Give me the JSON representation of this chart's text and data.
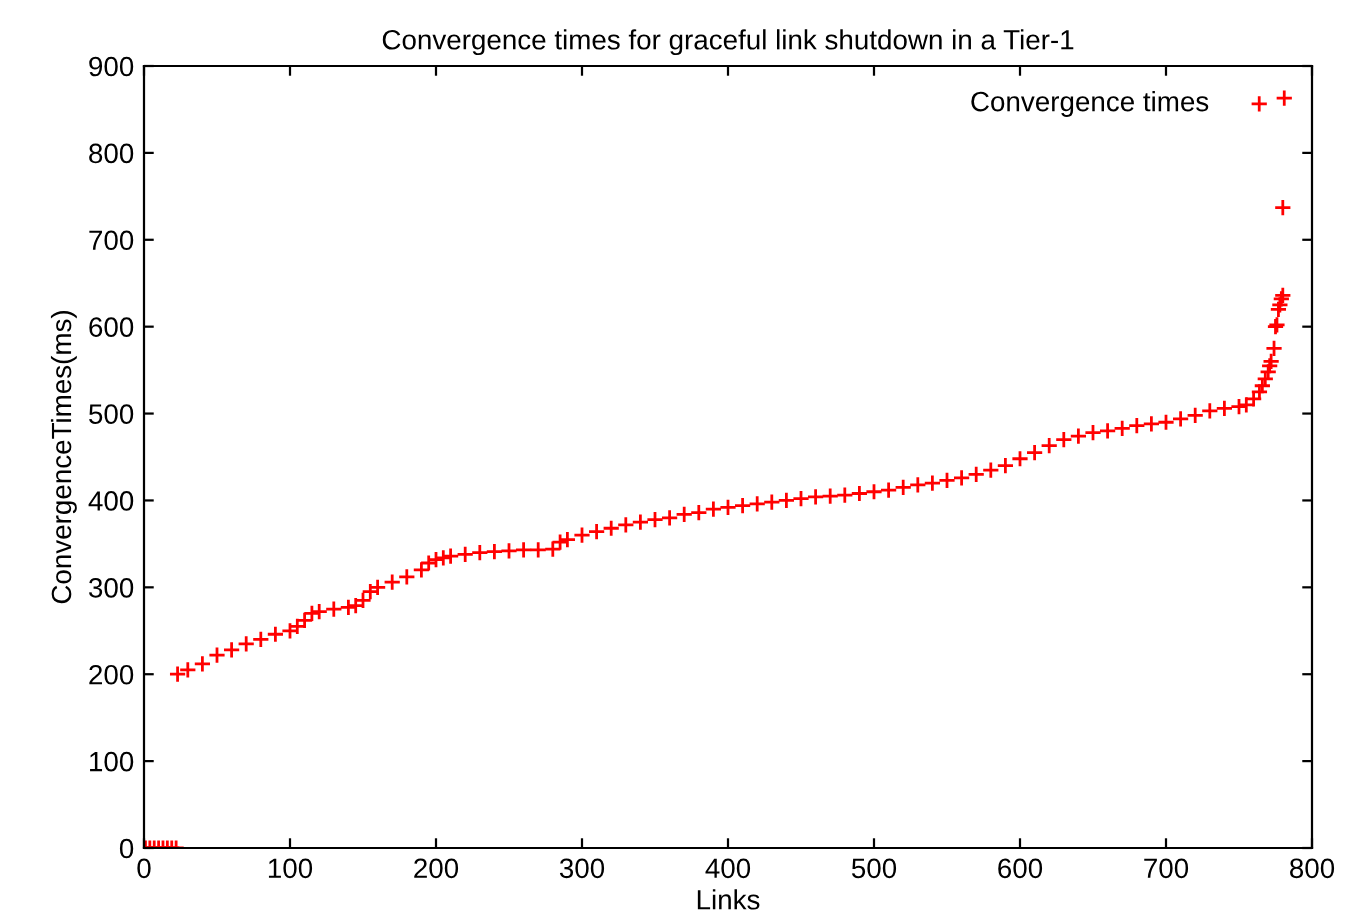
{
  "chart_data": {
    "type": "scatter",
    "title": "Convergence times for graceful link shutdown in a Tier-1",
    "xlabel": "Links",
    "ylabel": "ConvergenceTimes(ms)",
    "series": [
      {
        "name": "Convergence times",
        "color": "#ff0000",
        "x": [
          1,
          4,
          7,
          10,
          13,
          16,
          19,
          22,
          23,
          30,
          40,
          50,
          60,
          70,
          80,
          90,
          100,
          105,
          110,
          115,
          120,
          130,
          140,
          145,
          150,
          155,
          160,
          170,
          180,
          190,
          195,
          200,
          205,
          210,
          220,
          230,
          240,
          250,
          260,
          270,
          280,
          285,
          290,
          300,
          310,
          320,
          330,
          340,
          350,
          360,
          370,
          380,
          390,
          400,
          410,
          420,
          430,
          440,
          450,
          460,
          470,
          480,
          490,
          500,
          510,
          520,
          530,
          540,
          550,
          560,
          570,
          580,
          590,
          600,
          610,
          620,
          630,
          640,
          650,
          660,
          670,
          680,
          690,
          700,
          710,
          720,
          730,
          740,
          750,
          755,
          760,
          764,
          766,
          768,
          770,
          771,
          772,
          774,
          775,
          776,
          777,
          778,
          779,
          780,
          780,
          781
        ],
        "values": [
          0,
          0,
          0,
          0,
          0,
          0,
          0,
          0,
          200,
          205,
          212,
          222,
          228,
          235,
          240,
          246,
          250,
          255,
          262,
          270,
          272,
          275,
          277,
          279,
          285,
          295,
          300,
          306,
          312,
          320,
          328,
          332,
          334,
          336,
          338,
          340,
          341,
          342,
          343,
          343,
          344,
          352,
          355,
          360,
          364,
          368,
          372,
          375,
          378,
          380,
          384,
          386,
          390,
          392,
          394,
          396,
          398,
          400,
          402,
          404,
          405,
          406,
          408,
          410,
          412,
          415,
          418,
          420,
          423,
          426,
          430,
          435,
          440,
          448,
          455,
          463,
          470,
          474,
          478,
          480,
          483,
          486,
          488,
          490,
          494,
          498,
          503,
          506,
          508,
          510,
          517,
          525,
          532,
          540,
          548,
          555,
          560,
          575,
          600,
          602,
          620,
          625,
          632,
          636,
          737,
          863
        ]
      }
    ],
    "xlim": [
      0,
      800
    ],
    "ylim": [
      0,
      900
    ],
    "xticks": [
      0,
      100,
      200,
      300,
      400,
      500,
      600,
      700,
      800
    ],
    "yticks": [
      0,
      100,
      200,
      300,
      400,
      500,
      600,
      700,
      800,
      900
    ],
    "marker": "cross",
    "legend": "top right",
    "grid": false
  }
}
